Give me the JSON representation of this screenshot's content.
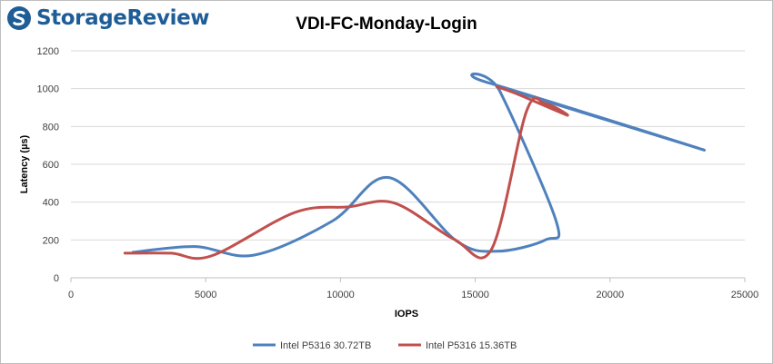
{
  "logo": {
    "text": "StorageReview"
  },
  "chart_data": {
    "type": "line",
    "title": "VDI-FC-Monday-Login",
    "xlabel": "IOPS",
    "ylabel": "Latency (µs)",
    "xlim": [
      0,
      25000
    ],
    "ylim": [
      0,
      1200
    ],
    "x_ticks": [
      0,
      5000,
      10000,
      15000,
      20000,
      25000
    ],
    "y_ticks": [
      0,
      200,
      400,
      600,
      800,
      1000,
      1200
    ],
    "grid": "horizontal",
    "legend_position": "bottom",
    "series": [
      {
        "name": "Intel P5316 30.72TB",
        "color": "#4f81bd",
        "points": [
          [
            2300,
            135
          ],
          [
            4600,
            165
          ],
          [
            6800,
            120
          ],
          [
            9700,
            300
          ],
          [
            11800,
            530
          ],
          [
            14300,
            195
          ],
          [
            15800,
            140
          ],
          [
            17600,
            200
          ],
          [
            18000,
            300
          ],
          [
            15900,
            990
          ],
          [
            15400,
            1035
          ],
          [
            23500,
            675
          ],
          [
            16000,
            1005
          ]
        ]
      },
      {
        "name": "Intel P5316 15.36TB",
        "color": "#c0504d",
        "points": [
          [
            2000,
            130
          ],
          [
            3700,
            130
          ],
          [
            5200,
            115
          ],
          [
            8300,
            345
          ],
          [
            10300,
            375
          ],
          [
            12000,
            395
          ],
          [
            14200,
            205
          ],
          [
            15600,
            150
          ],
          [
            16900,
            880
          ],
          [
            17600,
            920
          ],
          [
            18400,
            860
          ],
          [
            16500,
            975
          ],
          [
            15800,
            1010
          ]
        ]
      }
    ]
  }
}
